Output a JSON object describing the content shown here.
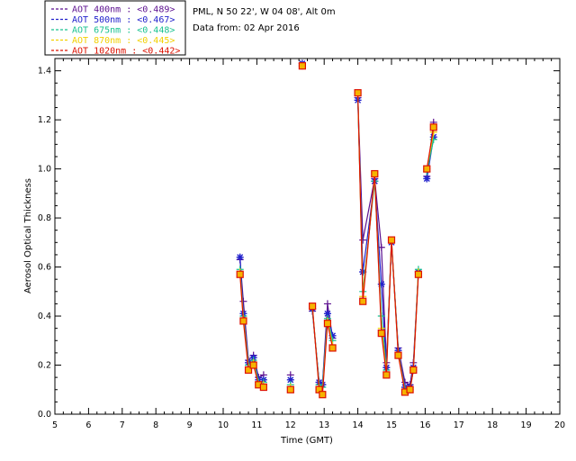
{
  "chart_data": {
    "type": "line",
    "info": [
      "PML, N 50 22', W 04 08', Alt 0m",
      "Data from: 02 Apr 2016"
    ],
    "xlabel": "Time (GMT)",
    "ylabel": "Aerosol Optical Thickness",
    "xlim": [
      5,
      20
    ],
    "ylim": [
      0,
      1.45
    ],
    "xticks": [
      "5",
      "6",
      "7",
      "8",
      "9",
      "10",
      "11",
      "12",
      "13",
      "14",
      "15",
      "16",
      "17",
      "18",
      "19",
      "20"
    ],
    "yticks": [
      "0.0",
      "0.2",
      "0.4",
      "0.6",
      "0.8",
      "1.0",
      "1.2",
      "1.4"
    ],
    "grid": false,
    "legend_position": "top-left, outside plot",
    "series": [
      {
        "name": "AOT  400nm : <0.489>",
        "color": "#5b0f8f",
        "marker": "plus",
        "segments": [
          [
            [
              10.5,
              0.63
            ],
            [
              10.6,
              0.46
            ],
            [
              10.75,
              0.22
            ],
            [
              10.9,
              0.24
            ],
            [
              11.05,
              0.15
            ],
            [
              11.2,
              0.16
            ]
          ],
          [
            [
              12,
              0.16
            ]
          ],
          [
            [
              12.35,
              1.43
            ]
          ],
          [
            [
              12.65,
              0.42
            ],
            [
              12.85,
              0.13
            ],
            [
              12.95,
              0.12
            ],
            [
              13.1,
              0.45
            ],
            [
              13.25,
              0.31
            ]
          ],
          [
            [
              14,
              1.29
            ],
            [
              14.15,
              0.71
            ],
            [
              14.5,
              0.96
            ],
            [
              14.7,
              0.68
            ],
            [
              14.85,
              0.21
            ],
            [
              15,
              0.7
            ],
            [
              15.2,
              0.27
            ],
            [
              15.4,
              0.13
            ],
            [
              15.55,
              0.12
            ],
            [
              15.65,
              0.21
            ],
            [
              15.8,
              0.58
            ]
          ],
          [
            [
              16.05,
              0.97
            ],
            [
              16.25,
              1.19
            ]
          ]
        ]
      },
      {
        "name": "AOT  500nm : <0.467>",
        "color": "#2222cc",
        "marker": "star",
        "segments": [
          [
            [
              10.5,
              0.64
            ],
            [
              10.6,
              0.41
            ],
            [
              10.75,
              0.21
            ],
            [
              10.9,
              0.23
            ],
            [
              11.05,
              0.14
            ],
            [
              11.2,
              0.14
            ]
          ],
          [
            [
              12,
              0.14
            ]
          ],
          [
            [
              12.35,
              1.43
            ]
          ],
          [
            [
              12.65,
              0.43
            ],
            [
              12.85,
              0.13
            ],
            [
              12.95,
              0.12
            ],
            [
              13.1,
              0.41
            ],
            [
              13.25,
              0.32
            ]
          ],
          [
            [
              14,
              1.28
            ],
            [
              14.15,
              0.58
            ],
            [
              14.5,
              0.95
            ],
            [
              14.7,
              0.53
            ],
            [
              14.85,
              0.19
            ],
            [
              15,
              0.7
            ],
            [
              15.2,
              0.26
            ],
            [
              15.4,
              0.11
            ],
            [
              15.55,
              0.11
            ],
            [
              15.65,
              0.19
            ],
            [
              15.8,
              0.58
            ]
          ],
          [
            [
              16.05,
              0.96
            ],
            [
              16.25,
              1.13
            ]
          ]
        ]
      },
      {
        "name": "AOT  675nm : <0.448>",
        "color": "#19c290",
        "marker": "plus",
        "segments": [
          [
            [
              10.5,
              0.59
            ],
            [
              10.6,
              0.4
            ],
            [
              10.75,
              0.2
            ],
            [
              10.9,
              0.22
            ],
            [
              11.05,
              0.13
            ],
            [
              11.2,
              0.13
            ]
          ],
          [
            [
              12,
              0.12
            ]
          ],
          [
            [
              12.35,
              1.42
            ]
          ],
          [
            [
              12.65,
              0.43
            ],
            [
              12.85,
              0.12
            ],
            [
              12.95,
              0.11
            ],
            [
              13.1,
              0.39
            ],
            [
              13.25,
              0.3
            ]
          ],
          [
            [
              14,
              1.3
            ],
            [
              14.15,
              0.5
            ],
            [
              14.5,
              0.95
            ],
            [
              14.7,
              0.4
            ],
            [
              14.85,
              0.18
            ],
            [
              15,
              0.71
            ],
            [
              15.2,
              0.25
            ],
            [
              15.4,
              0.1
            ],
            [
              15.55,
              0.1
            ],
            [
              15.65,
              0.18
            ],
            [
              15.8,
              0.59
            ]
          ],
          [
            [
              16.05,
              0.99
            ],
            [
              16.25,
              1.12
            ]
          ]
        ]
      },
      {
        "name": "AOT  870nm : <0.445>",
        "color": "#f2d000",
        "marker": "plus",
        "segments": [
          [
            [
              10.5,
              0.58
            ],
            [
              10.6,
              0.39
            ],
            [
              10.75,
              0.19
            ],
            [
              10.9,
              0.21
            ],
            [
              11.05,
              0.12
            ],
            [
              11.2,
              0.12
            ]
          ],
          [
            [
              12,
              0.11
            ]
          ],
          [
            [
              12.35,
              1.42
            ]
          ],
          [
            [
              12.65,
              0.44
            ],
            [
              12.85,
              0.11
            ],
            [
              12.95,
              0.09
            ],
            [
              13.1,
              0.38
            ],
            [
              13.25,
              0.28
            ]
          ],
          [
            [
              14,
              1.31
            ],
            [
              14.15,
              0.48
            ],
            [
              14.5,
              0.97
            ],
            [
              14.7,
              0.35
            ],
            [
              14.85,
              0.17
            ],
            [
              15,
              0.71
            ],
            [
              15.2,
              0.25
            ],
            [
              15.4,
              0.09
            ],
            [
              15.55,
              0.1
            ],
            [
              15.65,
              0.18
            ],
            [
              15.8,
              0.58
            ]
          ],
          [
            [
              16.05,
              1.0
            ],
            [
              16.25,
              1.15
            ]
          ]
        ]
      },
      {
        "name": "AOT 1020nm : <0.442>",
        "color": "#dd1100",
        "marker": "square",
        "segments": [
          [
            [
              10.5,
              0.57
            ],
            [
              10.6,
              0.38
            ],
            [
              10.75,
              0.18
            ],
            [
              10.9,
              0.2
            ],
            [
              11.05,
              0.12
            ],
            [
              11.2,
              0.11
            ]
          ],
          [
            [
              12,
              0.1
            ]
          ],
          [
            [
              12.35,
              1.42
            ]
          ],
          [
            [
              12.65,
              0.44
            ],
            [
              12.85,
              0.1
            ],
            [
              12.95,
              0.08
            ],
            [
              13.1,
              0.37
            ],
            [
              13.25,
              0.27
            ]
          ],
          [
            [
              14,
              1.31
            ],
            [
              14.15,
              0.46
            ],
            [
              14.5,
              0.98
            ],
            [
              14.7,
              0.33
            ],
            [
              14.85,
              0.16
            ],
            [
              15,
              0.71
            ],
            [
              15.2,
              0.24
            ],
            [
              15.4,
              0.09
            ],
            [
              15.55,
              0.1
            ],
            [
              15.65,
              0.18
            ],
            [
              15.8,
              0.57
            ]
          ],
          [
            [
              16.05,
              1.0
            ],
            [
              16.25,
              1.17
            ]
          ]
        ]
      }
    ]
  }
}
